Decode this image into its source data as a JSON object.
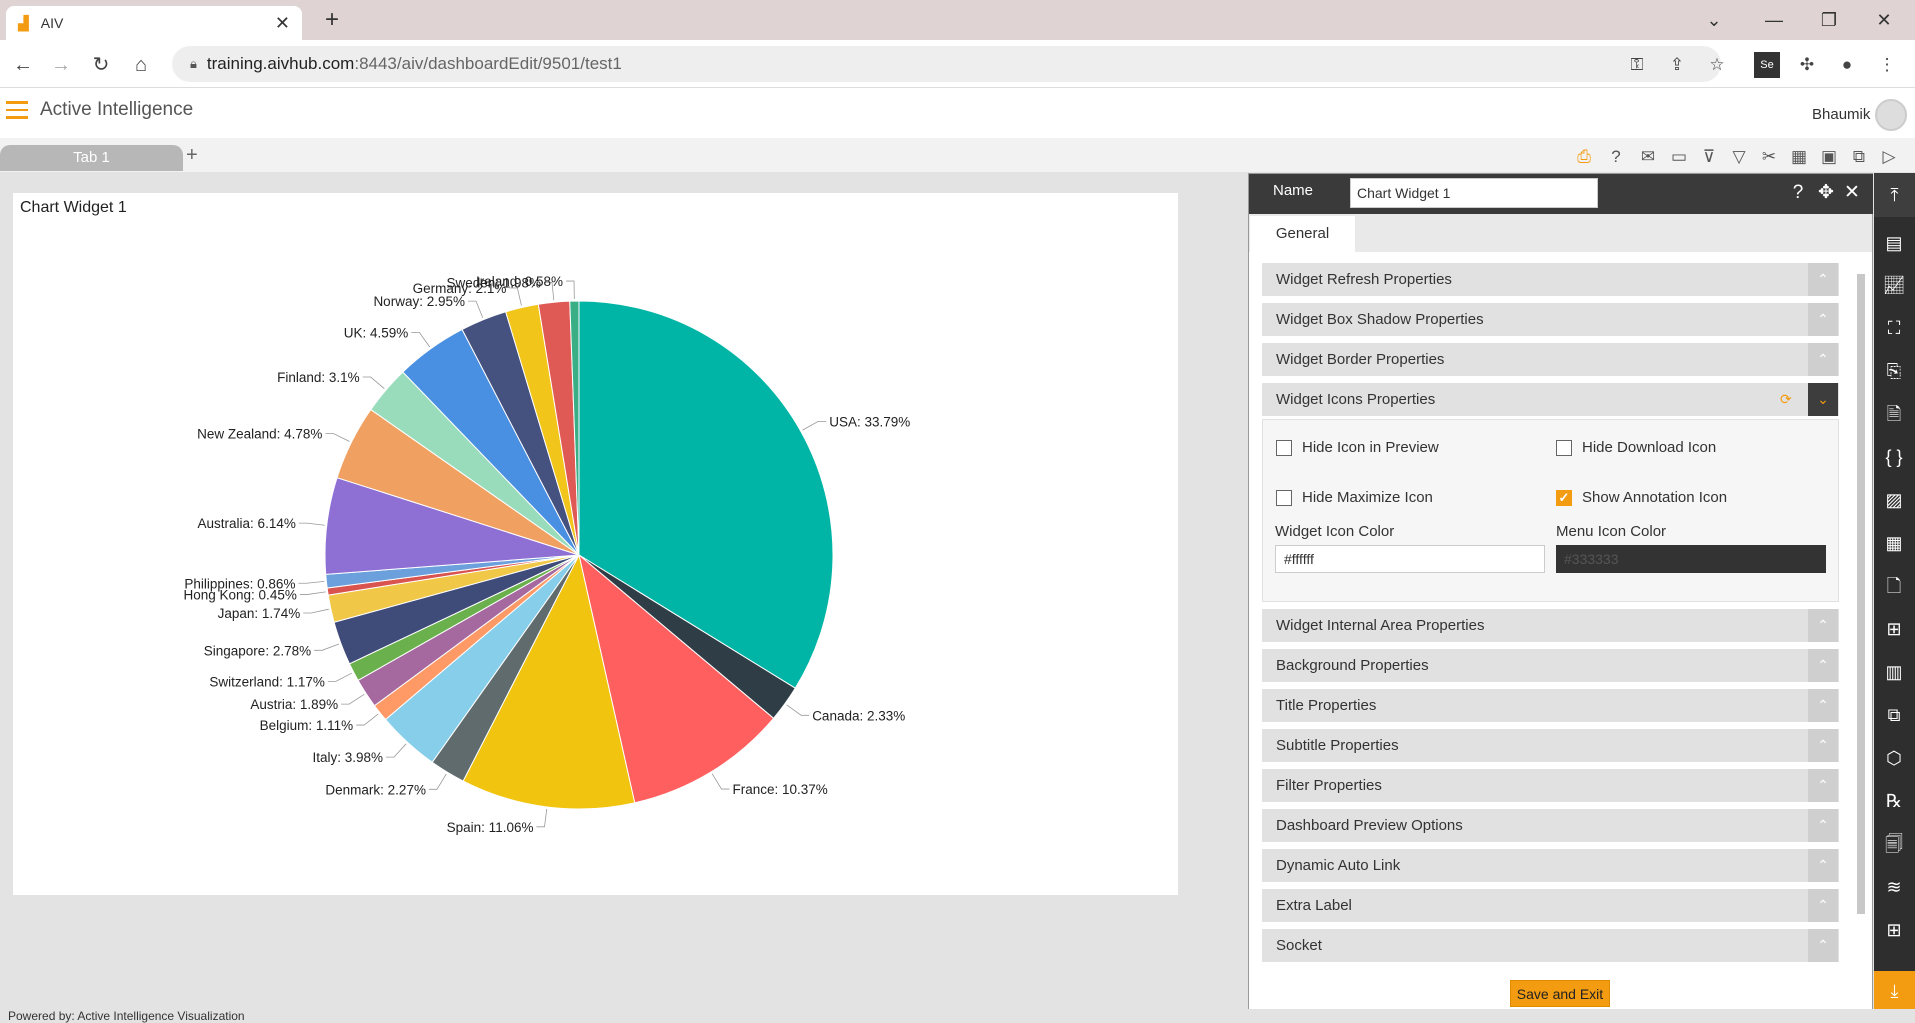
{
  "browser": {
    "tab_title": "AIV",
    "url_host": "training.aivhub.com",
    "url_path": ":8443/aiv/dashboardEdit/9501/test1"
  },
  "app": {
    "title": "Active Intelligence",
    "user": "Bhaumik",
    "dashboard_tab": "Tab 1",
    "footer": "Powered by: Active Intelligence Visualization"
  },
  "widget": {
    "title": "Chart Widget 1"
  },
  "chart_data": {
    "type": "pie",
    "title": "",
    "categories": [
      "USA",
      "Canada",
      "France",
      "Spain",
      "Denmark",
      "Italy",
      "Belgium",
      "Austria",
      "Switzerland",
      "Singapore",
      "Japan",
      "Hong Kong",
      "Philippines",
      "Australia",
      "New Zealand",
      "Finland",
      "UK",
      "Norway",
      "Germany",
      "Sweden",
      "Ireland"
    ],
    "values": [
      33.79,
      2.33,
      10.37,
      11.06,
      2.27,
      3.98,
      1.11,
      1.89,
      1.17,
      2.78,
      1.74,
      0.45,
      0.86,
      6.14,
      4.78,
      3.1,
      4.59,
      2.95,
      2.1,
      1.98,
      0.58
    ],
    "labels": [
      "USA: 33.79%",
      "Canada: 2.33%",
      "France: 10.37%",
      "Spain: 11.06%",
      "Denmark: 2.27%",
      "Italy: 3.98%",
      "Belgium: 1.11%",
      "Austria: 1.89%",
      "Switzerland: 1.17%",
      "Singapore: 2.78%",
      "Japan: 1.74%",
      "Hong Kong: 0.45%",
      "Philippines: 0.86%",
      "Australia: 6.14%",
      "New Zealand: 4.78%",
      "Finland: 3.1%",
      "UK: 4.59%",
      "Norway: 2.95%",
      "Germany: 2.1%",
      "Sweden: 1.98%",
      "Ireland: 0.58%"
    ],
    "colors": [
      "#00b5a5",
      "#2f3e46",
      "#ff5f5f",
      "#f1c40f",
      "#5f6b6d",
      "#87ceeb",
      "#ff9966",
      "#a569a0",
      "#6ab04c",
      "#3f4c7a",
      "#f1c748",
      "#d9534f",
      "#6ca0dc",
      "#8e6fd4",
      "#f0a060",
      "#99dcbc",
      "#4a90e2",
      "#45527f",
      "#f2c51a",
      "#e05a55",
      "#3aaf85"
    ],
    "legend": "none"
  },
  "panel": {
    "name_label": "Name",
    "name_value": "Chart Widget 1",
    "tab_general": "General",
    "sections": [
      "Widget Refresh Properties",
      "Widget Box Shadow Properties",
      "Widget Border Properties",
      "Widget Icons Properties",
      "Widget Internal Area Properties",
      "Background Properties",
      "Title Properties",
      "Subtitle Properties",
      "Filter Properties",
      "Dashboard Preview Options",
      "Dynamic Auto Link",
      "Extra Label",
      "Socket"
    ],
    "icons_options": {
      "hide_icon_preview": "Hide Icon in Preview",
      "hide_download_icon": "Hide Download Icon",
      "hide_maximize_icon": "Hide Maximize Icon",
      "show_annotation_icon": "Show Annotation Icon",
      "widget_icon_color_label": "Widget Icon Color",
      "widget_icon_color_value": "#ffffff",
      "menu_icon_color_label": "Menu Icon Color",
      "menu_icon_color_value": "#333333"
    },
    "save_exit": "Save and Exit"
  },
  "accent": "#f39c12"
}
